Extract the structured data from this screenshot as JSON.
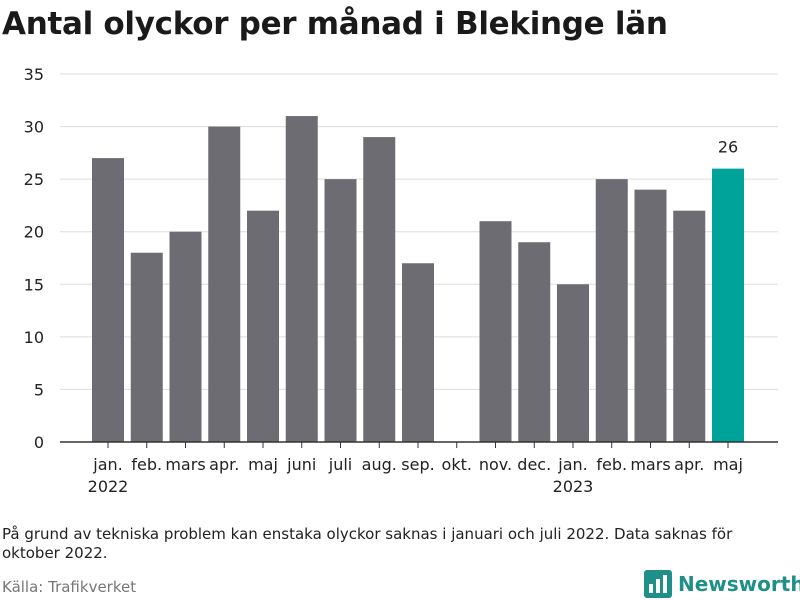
{
  "title": "Antal olyckor per månad i Blekinge län",
  "note": "På grund av tekniska problem kan enstaka olyckor saknas i januari och juli 2022. Data saknas för oktober 2022.",
  "source": "Källa: Trafikverket",
  "brand": "Newsworthy",
  "colors": {
    "bar": "#6d6c72",
    "highlight": "#00a39a",
    "grid": "#dddddd",
    "axis": "#333333"
  },
  "chart_data": {
    "type": "bar",
    "categories": [
      "jan.",
      "feb.",
      "mars",
      "apr.",
      "maj",
      "juni",
      "juli",
      "aug.",
      "sep.",
      "okt.",
      "nov.",
      "dec.",
      "jan.",
      "feb.",
      "mars",
      "apr.",
      "maj"
    ],
    "year_labels": [
      "2022",
      "",
      "",
      "",
      "",
      "",
      "",
      "",
      "",
      "",
      "",
      "",
      "2023",
      "",
      "",
      "",
      ""
    ],
    "values": [
      27,
      18,
      20,
      30,
      22,
      31,
      25,
      29,
      17,
      null,
      21,
      19,
      15,
      25,
      24,
      22,
      26
    ],
    "highlight_index": 16,
    "highlight_label": "26",
    "yticks": [
      0,
      5,
      10,
      15,
      20,
      25,
      30,
      35
    ],
    "ylim": [
      0,
      35
    ],
    "grid": true
  }
}
